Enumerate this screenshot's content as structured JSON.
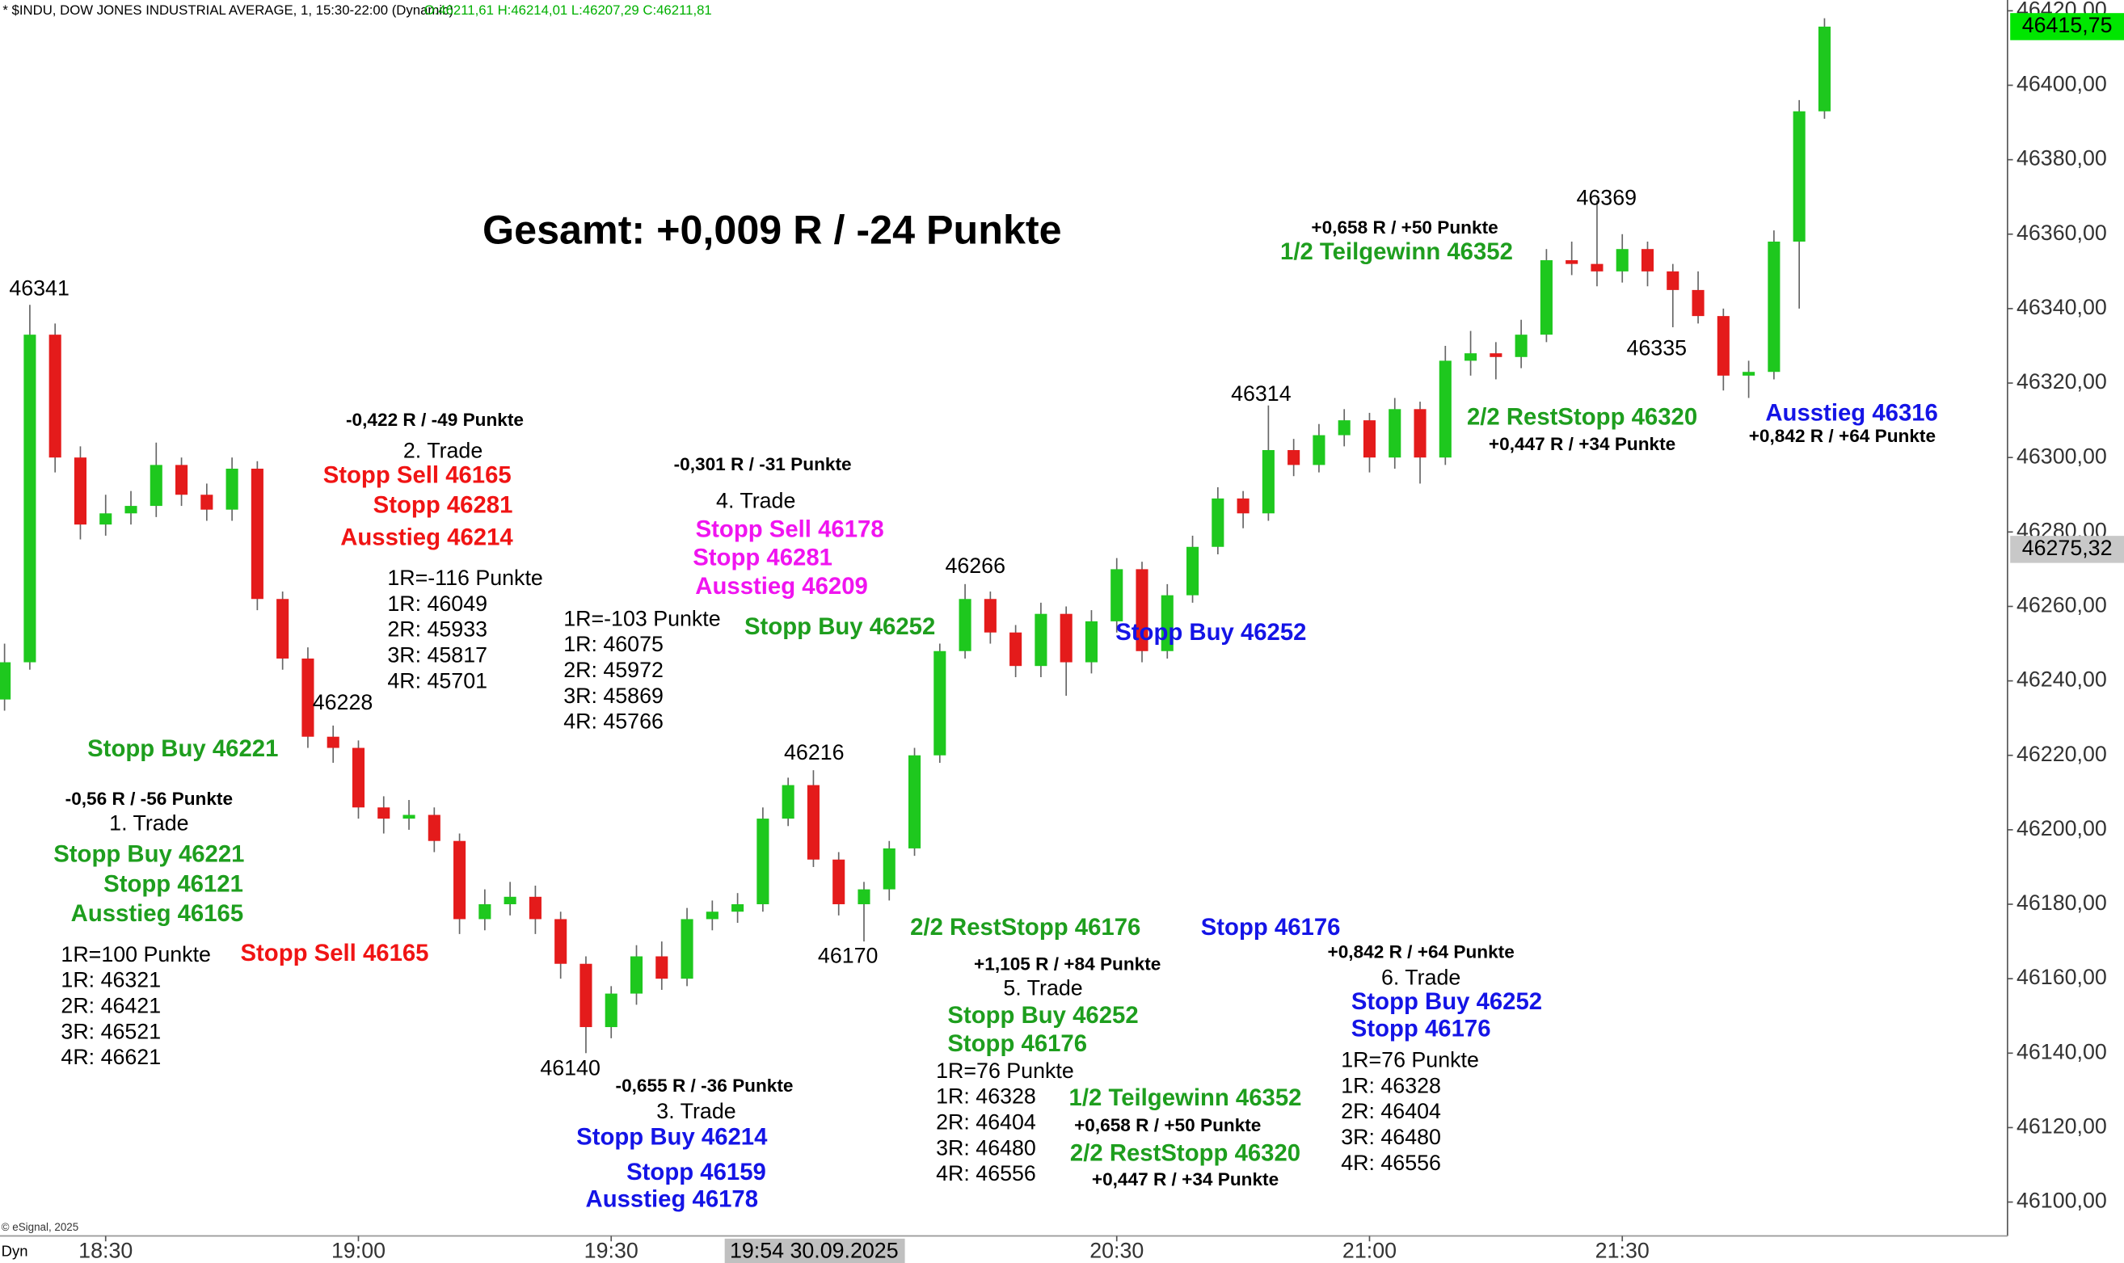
{
  "chart_data": {
    "type": "candlestick",
    "header": "* $INDU, DOW JONES INDUSTRIAL AVERAGE, 1, 15:30-22:00 (Dynamic)",
    "ohlc_header": "O:46211,61 H:46214,01 L:46207,29 C:46211,81",
    "footer": "© eSignal, 2025",
    "mode_label": "Dyn",
    "crosshair_label": "19:54 30.09.2025",
    "up_color": "#1ec81e",
    "down_color": "#e41b1b",
    "xlim": [
      -0.18,
      79.24
    ],
    "xticks": [
      {
        "value": 4,
        "label": "18:30"
      },
      {
        "value": 14,
        "label": "19:00"
      },
      {
        "value": 24,
        "label": "19:30"
      },
      {
        "value": 44,
        "label": "20:30"
      },
      {
        "value": 54,
        "label": "21:00"
      },
      {
        "value": 64,
        "label": "21:30"
      }
    ],
    "ylim": [
      46090.9,
      46422.9
    ],
    "yticks": [
      {
        "value": 46100,
        "label": "46100,00"
      },
      {
        "value": 46120,
        "label": "46120,00"
      },
      {
        "value": 46140,
        "label": "46140,00"
      },
      {
        "value": 46160,
        "label": "46160,00"
      },
      {
        "value": 46180,
        "label": "46180,00"
      },
      {
        "value": 46200,
        "label": "46200,00"
      },
      {
        "value": 46220,
        "label": "46220,00"
      },
      {
        "value": 46240,
        "label": "46240,00"
      },
      {
        "value": 46260,
        "label": "46260,00"
      },
      {
        "value": 46280,
        "label": "46280,00"
      },
      {
        "value": 46300,
        "label": "46300,00"
      },
      {
        "value": 46320,
        "label": "46320,00"
      },
      {
        "value": 46340,
        "label": "46340,00"
      },
      {
        "value": 46360,
        "label": "46360,00"
      },
      {
        "value": 46380,
        "label": "46380,00"
      },
      {
        "value": 46400,
        "label": "46400,00"
      },
      {
        "value": 46420,
        "label": "46420,00"
      }
    ],
    "price_labels": [
      {
        "value": 46415.75,
        "label": "46415,75",
        "color": "#00e600"
      },
      {
        "value": 46275.32,
        "label": "46275,32",
        "color": "#c8c8c8"
      }
    ],
    "open": [
      46235,
      46245,
      46333,
      46300,
      46282,
      46285,
      46287,
      46298,
      46290,
      46286,
      46297,
      46262,
      46246,
      46225,
      46222,
      46206,
      46203,
      46204,
      46197,
      46176,
      46180,
      46182,
      46176,
      46164,
      46147,
      46156,
      46166,
      46160,
      46176,
      46178,
      46180,
      46203,
      46212,
      46192,
      46180,
      46184,
      46195,
      46220,
      46248,
      46262,
      46253,
      46244,
      46258,
      46245,
      46256,
      46270,
      46248,
      46263,
      46276,
      46289,
      46285,
      46302,
      46298,
      46306,
      46310,
      46300,
      46313,
      46300,
      46326,
      46328,
      46327,
      46333,
      46353,
      46352,
      46350,
      46356,
      46350,
      46345,
      46338,
      46322,
      46323,
      46358,
      46393
    ],
    "high": [
      46250,
      46341,
      46336,
      46303,
      46290,
      46291,
      46304,
      46300,
      46293,
      46300,
      46299,
      46264,
      46249,
      46228,
      46224,
      46209,
      46208,
      46206,
      46199,
      46184,
      46186,
      46185,
      46178,
      46166,
      46158,
      46169,
      46170,
      46179,
      46181,
      46183,
      46206,
      46214,
      46216,
      46194,
      46186,
      46197,
      46222,
      46250,
      46266,
      46264,
      46255,
      46261,
      46260,
      46259,
      46273,
      46272,
      46266,
      46279,
      46292,
      46291,
      46314,
      46305,
      46309,
      46313,
      46312,
      46316,
      46315,
      46330,
      46334,
      46331,
      46337,
      46356,
      46358,
      46369,
      46360,
      46358,
      46352,
      46350,
      46340,
      46326,
      46361,
      46396,
      46418
    ],
    "low": [
      46232,
      46243,
      46296,
      46278,
      46279,
      46282,
      46284,
      46287,
      46283,
      46283,
      46259,
      46243,
      46222,
      46218,
      46203,
      46199,
      46200,
      46194,
      46172,
      46173,
      46177,
      46172,
      46160,
      46140,
      46144,
      46153,
      46157,
      46158,
      46173,
      46175,
      46178,
      46201,
      46190,
      46177,
      46170,
      46181,
      46193,
      46218,
      46246,
      46250,
      46241,
      46241,
      46236,
      46242,
      46253,
      46245,
      46246,
      46261,
      46274,
      46281,
      46283,
      46295,
      46296,
      46303,
      46296,
      46297,
      46293,
      46298,
      46322,
      46321,
      46324,
      46331,
      46349,
      46346,
      46347,
      46346,
      46335,
      46336,
      46318,
      46316,
      46321,
      46340,
      46391
    ],
    "close": [
      46245,
      46333,
      46300,
      46282,
      46285,
      46287,
      46298,
      46290,
      46286,
      46297,
      46262,
      46246,
      46225,
      46222,
      46206,
      46203,
      46204,
      46197,
      46176,
      46180,
      46182,
      46176,
      46164,
      46147,
      46156,
      46166,
      46160,
      46176,
      46178,
      46180,
      46203,
      46212,
      46192,
      46180,
      46184,
      46195,
      46220,
      46248,
      46262,
      46253,
      46244,
      46258,
      46245,
      46256,
      46270,
      46248,
      46263,
      46276,
      46289,
      46285,
      46302,
      46298,
      46306,
      46310,
      46300,
      46313,
      46300,
      46326,
      46328,
      46327,
      46333,
      46353,
      46352,
      46350,
      46356,
      46350,
      46345,
      46338,
      46322,
      46323,
      46358,
      46393,
      46415.75
    ],
    "annotations": [
      {
        "text": "Gesamt: +0,009 R / -24 Punkte",
        "color": "#000000"
      },
      {
        "text": "46341",
        "color": "#000000"
      },
      {
        "text": "-0,422 R / -49 Punkte",
        "color": "#000000"
      },
      {
        "text": "2. Trade",
        "color": "#000000"
      },
      {
        "text": "Stopp Sell 46165",
        "color": "#f01414"
      },
      {
        "text": "Stopp 46281",
        "color": "#f01414"
      },
      {
        "text": "Ausstieg 46214",
        "color": "#f01414"
      },
      {
        "text": "1R=-116 Punkte",
        "color": "#000000"
      },
      {
        "text": "1R: 46049",
        "color": "#000000"
      },
      {
        "text": "2R: 45933",
        "color": "#000000"
      },
      {
        "text": "3R: 45817",
        "color": "#000000"
      },
      {
        "text": "4R: 45701",
        "color": "#000000"
      },
      {
        "text": "46228",
        "color": "#000000"
      },
      {
        "text": "Stopp Buy 46221",
        "color": "#1e9e1e"
      },
      {
        "text": "-0,56 R / -56 Punkte",
        "color": "#000000"
      },
      {
        "text": "1. Trade",
        "color": "#000000"
      },
      {
        "text": "Stopp Buy 46221",
        "color": "#1e9e1e"
      },
      {
        "text": "Stopp 46121",
        "color": "#1e9e1e"
      },
      {
        "text": "Ausstieg 46165",
        "color": "#1e9e1e"
      },
      {
        "text": "1R=100 Punkte",
        "color": "#000000"
      },
      {
        "text": "1R: 46321",
        "color": "#000000"
      },
      {
        "text": "2R: 46421",
        "color": "#000000"
      },
      {
        "text": "3R: 46521",
        "color": "#000000"
      },
      {
        "text": "4R: 46621",
        "color": "#000000"
      },
      {
        "text": "Stopp Sell 46165",
        "color": "#f01414"
      },
      {
        "text": "-0,301 R / -31 Punkte",
        "color": "#000000"
      },
      {
        "text": "4. Trade",
        "color": "#000000"
      },
      {
        "text": "Stopp Sell 46178",
        "color": "#f014f0"
      },
      {
        "text": "Stopp 46281",
        "color": "#f014f0"
      },
      {
        "text": "Ausstieg 46209",
        "color": "#f014f0"
      },
      {
        "text": "1R=-103 Punkte",
        "color": "#000000"
      },
      {
        "text": "1R: 46075",
        "color": "#000000"
      },
      {
        "text": "2R: 45972",
        "color": "#000000"
      },
      {
        "text": "3R: 45869",
        "color": "#000000"
      },
      {
        "text": "4R: 45766",
        "color": "#000000"
      },
      {
        "text": "Stopp Buy 46252",
        "color": "#1e9e1e"
      },
      {
        "text": "46266",
        "color": "#000000"
      },
      {
        "text": "46216",
        "color": "#000000"
      },
      {
        "text": "46170",
        "color": "#000000"
      },
      {
        "text": "46140",
        "color": "#000000"
      },
      {
        "text": "-0,655 R / -36 Punkte",
        "color": "#000000"
      },
      {
        "text": "3. Trade",
        "color": "#000000"
      },
      {
        "text": "Stopp Buy 46214",
        "color": "#1414e6"
      },
      {
        "text": "Stopp 46159",
        "color": "#1414e6"
      },
      {
        "text": "Ausstieg 46178",
        "color": "#1414e6"
      },
      {
        "text": "2/2 RestStopp 46176",
        "color": "#1e9e1e"
      },
      {
        "text": "+1,105 R / +84 Punkte",
        "color": "#000000"
      },
      {
        "text": "5. Trade",
        "color": "#000000"
      },
      {
        "text": "Stopp Buy 46252",
        "color": "#1e9e1e"
      },
      {
        "text": "Stopp 46176",
        "color": "#1e9e1e"
      },
      {
        "text": "1R=76 Punkte",
        "color": "#000000"
      },
      {
        "text": "1R: 46328",
        "color": "#000000"
      },
      {
        "text": "2R: 46404",
        "color": "#000000"
      },
      {
        "text": "3R: 46480",
        "color": "#000000"
      },
      {
        "text": "4R: 46556",
        "color": "#000000"
      },
      {
        "text": "1/2 Teilgewinn 46352",
        "color": "#1e9e1e"
      },
      {
        "text": "+0,658 R / +50 Punkte",
        "color": "#000000"
      },
      {
        "text": "2/2 RestStopp 46320",
        "color": "#1e9e1e"
      },
      {
        "text": "+0,447 R / +34 Punkte",
        "color": "#000000"
      },
      {
        "text": "Stopp Buy 46252",
        "color": "#1414e6"
      },
      {
        "text": "Stopp 46176",
        "color": "#1414e6"
      },
      {
        "text": "+0,842 R / +64 Punkte",
        "color": "#000000"
      },
      {
        "text": "6. Trade",
        "color": "#000000"
      },
      {
        "text": "Stopp Buy 46252",
        "color": "#1414e6"
      },
      {
        "text": "Stopp 46176",
        "color": "#1414e6"
      },
      {
        "text": "1R=76 Punkte",
        "color": "#000000"
      },
      {
        "text": "1R: 46328",
        "color": "#000000"
      },
      {
        "text": "2R: 46404",
        "color": "#000000"
      },
      {
        "text": "3R: 46480",
        "color": "#000000"
      },
      {
        "text": "4R: 46556",
        "color": "#000000"
      },
      {
        "text": "46314",
        "color": "#000000"
      },
      {
        "text": "+0,658 R / +50 Punkte",
        "color": "#000000"
      },
      {
        "text": "1/2 Teilgewinn 46352",
        "color": "#1e9e1e"
      },
      {
        "text": "46369",
        "color": "#000000"
      },
      {
        "text": "46335",
        "color": "#000000"
      },
      {
        "text": "2/2 RestStopp 46320",
        "color": "#1e9e1e"
      },
      {
        "text": "+0,447 R / +34 Punkte",
        "color": "#000000"
      },
      {
        "text": "Ausstieg 46316",
        "color": "#1414e6"
      },
      {
        "text": "+0,842 R / +64 Punkte",
        "color": "#000000"
      }
    ]
  }
}
